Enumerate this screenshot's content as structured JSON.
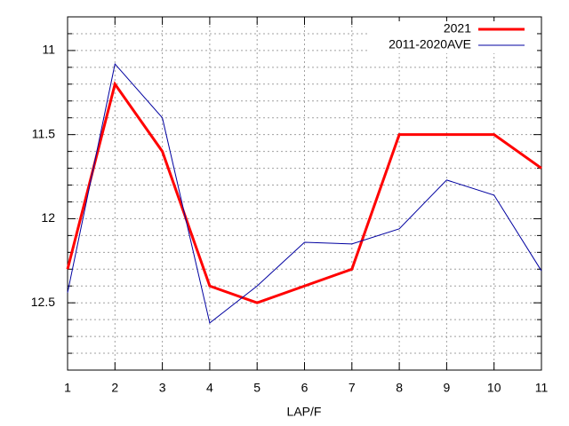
{
  "chart_data": {
    "type": "line",
    "x_label": "LAP/F",
    "x": [
      1,
      2,
      3,
      4,
      5,
      6,
      7,
      8,
      9,
      10,
      11
    ],
    "series": [
      {
        "name": "2021",
        "color": "#ff0000",
        "width": 3,
        "values": [
          12.3,
          11.2,
          11.6,
          12.4,
          12.5,
          12.4,
          12.3,
          11.5,
          11.5,
          11.5,
          11.7
        ]
      },
      {
        "name": "2011-2020AVE",
        "color": "#0000a0",
        "width": 1,
        "values": [
          12.44,
          11.08,
          11.4,
          12.62,
          12.4,
          12.14,
          12.15,
          12.06,
          11.77,
          11.86,
          12.31
        ]
      }
    ],
    "xlim": [
      1,
      11
    ],
    "xticks": [
      1,
      2,
      3,
      4,
      5,
      6,
      7,
      8,
      9,
      10,
      11
    ],
    "ylim": [
      12.9,
      10.8
    ],
    "yticks": [
      11,
      11.5,
      12,
      12.5
    ],
    "yminorticks": [
      10.9,
      11.1,
      11.2,
      11.3,
      11.4,
      11.6,
      11.7,
      11.8,
      11.9,
      12.1,
      12.2,
      12.3,
      12.4,
      12.6,
      12.7,
      12.8
    ],
    "grid": true,
    "legend": "top-right"
  }
}
